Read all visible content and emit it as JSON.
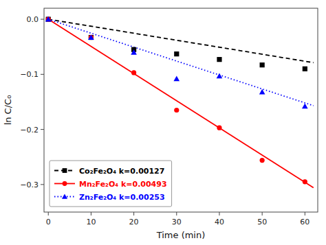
{
  "chart_data": {
    "type": "scatter",
    "x_label": "Time (min)",
    "y_label": "ln C/C₀",
    "xlim": [
      -1,
      63
    ],
    "ylim": [
      -0.35,
      0.02
    ],
    "xticks": [
      0,
      10,
      20,
      30,
      40,
      50,
      60
    ],
    "yticks": [
      {
        "value": 0.0,
        "label": "0.0"
      },
      {
        "value": -0.1,
        "label": "−0.1"
      },
      {
        "value": -0.2,
        "label": "−0.2"
      },
      {
        "value": -0.3,
        "label": "−0.3"
      }
    ],
    "grid": false,
    "legend": "lower left",
    "series": [
      {
        "name": "Co₂Fe₂O₄ k=0.00127",
        "color": "black",
        "marker": "square",
        "line_style": "dashed",
        "x": [
          0,
          10,
          20,
          30,
          40,
          50,
          60
        ],
        "values": [
          0.0,
          -0.033,
          -0.055,
          -0.063,
          -0.073,
          -0.083,
          -0.09
        ],
        "fit_x": [
          0,
          62
        ],
        "fit_values": [
          0,
          -0.07874
        ]
      },
      {
        "name": "Mn₂Fe₂O₄ k=0.00493",
        "color": "red",
        "marker": "circle",
        "line_style": "solid",
        "x": [
          0,
          10,
          20,
          30,
          40,
          50,
          60
        ],
        "values": [
          0.0,
          -0.033,
          -0.097,
          -0.165,
          -0.197,
          -0.256,
          -0.295
        ],
        "fit_x": [
          0,
          62
        ],
        "fit_values": [
          0,
          -0.30566
        ]
      },
      {
        "name": "Zn₂Fe₂O₄ k=0.00253",
        "color": "blue",
        "marker": "triangle",
        "line_style": "dotted",
        "x": [
          0,
          10,
          20,
          30,
          40,
          50,
          60
        ],
        "values": [
          0.0,
          -0.033,
          -0.06,
          -0.108,
          -0.103,
          -0.132,
          -0.158
        ],
        "fit_x": [
          0,
          62
        ],
        "fit_values": [
          0,
          -0.15686
        ]
      }
    ]
  }
}
